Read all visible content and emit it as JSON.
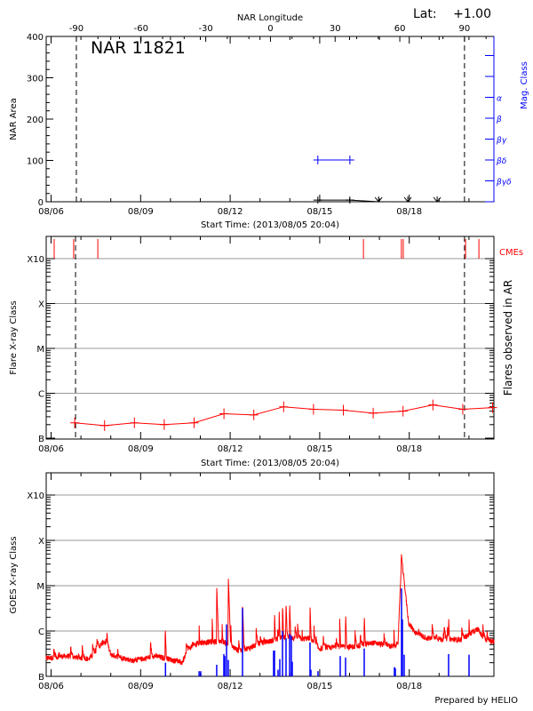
{
  "colors": {
    "flare": "#ff0000",
    "mag_class": "#0000ff",
    "axis": "#000000",
    "grid": "#999999",
    "goes_events": "#0000ff"
  },
  "footer": "Prepared by HELIO",
  "x_range": [
    "2013-08-05 20:04",
    "2013-08-20 20:04"
  ],
  "x_tick_labels": [
    "08/06",
    "08/09",
    "08/12",
    "08/15",
    "08/18"
  ],
  "chart_data": [
    {
      "type": "line",
      "title": "NAR 11821",
      "top_axis_label": "NAR Longitude",
      "top_ticks": [
        -90,
        -60,
        -30,
        0,
        30,
        60,
        90
      ],
      "lat_label": "Lat:",
      "lat_value": "+1.00",
      "xlabel": "Start Time: (2013/08/05 20:04)",
      "ylabel": "NAR Area",
      "y2label": "Mag. Class",
      "ylim": [
        0,
        400
      ],
      "y_ticks": [
        0,
        100,
        200,
        300,
        400
      ],
      "mag_class_ticks": [
        "α",
        "β",
        "βγ",
        "βδ",
        "βγδ"
      ],
      "limb_lines": [
        "2013-08-06 20:20",
        "2013-08-19 20:25"
      ],
      "area_series": [
        {
          "t": "2013-08-14 22:30",
          "v": 4,
          "marker": "plus"
        },
        {
          "t": "2013-08-16 00:15",
          "v": 4,
          "marker": "plus"
        },
        {
          "t": "2013-08-16 23:20",
          "v": 0,
          "marker": "arrow"
        },
        {
          "t": "2013-08-17 22:50",
          "v": 0,
          "marker": "arrow"
        },
        {
          "t": "2013-08-18 22:25",
          "v": 0,
          "marker": "arrow"
        }
      ],
      "mag_series": [
        {
          "t": "2013-08-14 22:30",
          "class": "β"
        },
        {
          "t": "2013-08-16 00:15",
          "class": "β"
        }
      ],
      "grid": false
    },
    {
      "type": "line",
      "xlabel": "Start Time: (2013/08/05 20:04)",
      "ylabel": "Flare X-ray Class",
      "y2label": "Flares observed in AR",
      "y_ticks": [
        "B",
        "C",
        "M",
        "X",
        "X10"
      ],
      "cme_label": "CMEs",
      "grid": true,
      "limb_lines": [
        "2013-08-06 19:40",
        "2013-08-19 20:25"
      ],
      "cmes": [
        "2013-08-06 02:30",
        "2013-08-06 18:10",
        "2013-08-07 13:35",
        "2013-08-16 11:10",
        "2013-08-17 17:40",
        "2013-08-17 19:10",
        "2013-08-19 21:15",
        "2013-08-20 08:00"
      ],
      "series": [
        {
          "t": "2013-08-06 19:00",
          "class": "B2.2"
        },
        {
          "t": "2013-08-07 19:00",
          "class": "B1.9"
        },
        {
          "t": "2013-08-08 19:00",
          "class": "B2.2"
        },
        {
          "t": "2013-08-09 19:00",
          "class": "B2.0"
        },
        {
          "t": "2013-08-10 19:00",
          "class": "B2.2"
        },
        {
          "t": "2013-08-11 19:00",
          "class": "B3.5"
        },
        {
          "t": "2013-08-12 19:00",
          "class": "B3.3"
        },
        {
          "t": "2013-08-13 19:00",
          "class": "B5.0"
        },
        {
          "t": "2013-08-14 19:00",
          "class": "B4.4"
        },
        {
          "t": "2013-08-15 19:00",
          "class": "B4.2"
        },
        {
          "t": "2013-08-16 19:00",
          "class": "B3.6"
        },
        {
          "t": "2013-08-17 19:00",
          "class": "B4.0"
        },
        {
          "t": "2013-08-18 19:00",
          "class": "B5.5"
        },
        {
          "t": "2013-08-19 19:00",
          "class": "B4.4"
        },
        {
          "t": "2013-08-20 19:00",
          "class": "B4.8"
        }
      ]
    },
    {
      "type": "line",
      "ylabel": "GOES X-ray Class",
      "y_ticks": [
        "B",
        "C",
        "M",
        "X",
        "X10"
      ],
      "grid": true,
      "goes_baseline": [
        [
          "2013-08-05 20:04",
          "B2.5"
        ],
        [
          "2013-08-06 12:30",
          "B2.8"
        ],
        [
          "2013-08-07 06:20",
          "B2.4"
        ],
        [
          "2013-08-07 15:00",
          "B4.5"
        ],
        [
          "2013-08-07 18:30",
          "B6.0"
        ],
        [
          "2013-08-08 00:15",
          "B3.0"
        ],
        [
          "2013-08-08 18:00",
          "B2.2"
        ],
        [
          "2013-08-09 12:00",
          "B2.8"
        ],
        [
          "2013-08-09 22:40",
          "B2.4"
        ],
        [
          "2013-08-10 09:20",
          "B2.0"
        ],
        [
          "2013-08-10 14:20",
          "B4.0"
        ],
        [
          "2013-08-10 23:30",
          "B5.5"
        ],
        [
          "2013-08-11 17:30",
          "B6.0"
        ],
        [
          "2013-08-12 02:10",
          "B4.5"
        ],
        [
          "2013-08-12 07:40",
          "B3.5"
        ],
        [
          "2013-08-12 22:00",
          "B5.0"
        ],
        [
          "2013-08-13 08:50",
          "B6.0"
        ],
        [
          "2013-08-13 19:25",
          "B7.5"
        ],
        [
          "2013-08-14 06:10",
          "B6.5"
        ],
        [
          "2013-08-14 16:50",
          "B7.0"
        ],
        [
          "2013-08-14 22:30",
          "B4.0"
        ],
        [
          "2013-08-15 14:20",
          "B4.5"
        ],
        [
          "2013-08-16 04:35",
          "B4.5"
        ],
        [
          "2013-08-16 19:00",
          "B5.5"
        ],
        [
          "2013-08-17 12:45",
          "B4.5"
        ],
        [
          "2013-08-17 15:00",
          "B6.0"
        ],
        [
          "2013-08-17 17:45",
          "M3.5"
        ],
        [
          "2013-08-17 20:00",
          "M1.2"
        ],
        [
          "2013-08-17 23:30",
          "C1.5"
        ],
        [
          "2013-08-18 05:15",
          "B9.0"
        ],
        [
          "2013-08-18 13:40",
          "B7.0"
        ],
        [
          "2013-08-19 04:00",
          "B6.5"
        ],
        [
          "2013-08-19 18:20",
          "B6.5"
        ],
        [
          "2013-08-20 01:25",
          "B9.0"
        ],
        [
          "2013-08-20 07:10",
          "C1.1"
        ],
        [
          "2013-08-20 13:00",
          "B6.0"
        ],
        [
          "2013-08-20 20:04",
          "B6.0"
        ]
      ],
      "goes_peaks": [
        [
          "2013-08-09 19:46",
          "C1.3"
        ],
        [
          "2013-08-10 23:00",
          "C1.5"
        ],
        [
          "2013-08-11 09:30",
          "C2.1"
        ],
        [
          "2013-08-11 13:10",
          "M1.0"
        ],
        [
          "2013-08-11 17:30",
          "C1.6"
        ],
        [
          "2013-08-11 22:30",
          "M1.6"
        ],
        [
          "2013-08-12 00:30",
          "C1.5"
        ],
        [
          "2013-08-12 09:55",
          "C4.3"
        ],
        [
          "2013-08-13 11:38",
          "C2.7"
        ],
        [
          "2013-08-13 15:20",
          "C3.0"
        ],
        [
          "2013-08-13 18:05",
          "C4.0"
        ],
        [
          "2013-08-13 20:55",
          "C4.5"
        ],
        [
          "2013-08-13 23:47",
          "C4.5"
        ],
        [
          "2013-08-14 09:50",
          "C1.2"
        ],
        [
          "2013-08-14 16:12",
          "C3.5"
        ],
        [
          "2013-08-15 16:00",
          "C2.1"
        ],
        [
          "2013-08-15 20:47",
          "C2.6"
        ],
        [
          "2013-08-16 11:47",
          "C2.4"
        ],
        [
          "2013-08-17 11:40",
          "C1.2"
        ],
        [
          "2013-08-19 07:38",
          "C2.2"
        ],
        [
          "2013-08-20 00:04",
          "C1.8"
        ]
      ],
      "goes_events": [
        [
          "2013-08-09 20:00",
          "B2.0"
        ],
        [
          "2013-08-10 23:00",
          "B1.3"
        ],
        [
          "2013-08-11 00:20",
          "B1.3"
        ],
        [
          "2013-08-11 13:10",
          "B1.8"
        ],
        [
          "2013-08-11 18:55",
          "B3.1"
        ],
        [
          "2013-08-11 19:40",
          "B2.8"
        ],
        [
          "2013-08-11 21:05",
          "C1.4"
        ],
        [
          "2013-08-11 22:30",
          "B2.3"
        ],
        [
          "2013-08-12 09:55",
          "C3.2"
        ],
        [
          "2013-08-13 10:55",
          "B3.7"
        ],
        [
          "2013-08-13 11:38",
          "B3.7"
        ],
        [
          "2013-08-13 14:30",
          "B1.4"
        ],
        [
          "2013-08-13 15:55",
          "B2.4"
        ],
        [
          "2013-08-13 18:05",
          "C1.0"
        ],
        [
          "2013-08-13 20:55",
          "B6.9"
        ],
        [
          "2013-08-13 23:47",
          "B8.7"
        ],
        [
          "2013-08-14 01:12",
          "B7.9"
        ],
        [
          "2013-08-14 01:55",
          "B2.1"
        ],
        [
          "2013-08-14 16:12",
          "B5.6"
        ],
        [
          "2013-08-14 16:55",
          "B1.4"
        ],
        [
          "2013-08-14 22:37",
          "B1.3"
        ],
        [
          "2013-08-15 16:29",
          "B2.8"
        ],
        [
          "2013-08-15 20:47",
          "B2.6"
        ],
        [
          "2013-08-16 11:47",
          "B4.1"
        ],
        [
          "2013-08-17 12:04",
          "B1.6"
        ],
        [
          "2013-08-17 12:47",
          "B1.5"
        ],
        [
          "2013-08-17 17:47",
          "C8.7"
        ],
        [
          "2013-08-17 18:30",
          "C1.8"
        ],
        [
          "2013-08-17 19:55",
          "B3.0"
        ],
        [
          "2013-08-19 07:38",
          "B3.1"
        ],
        [
          "2013-08-20 00:04",
          "B3.0"
        ]
      ]
    }
  ]
}
